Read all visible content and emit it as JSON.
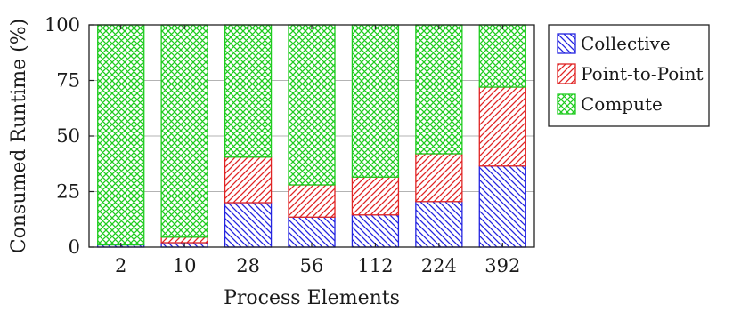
{
  "chart_data": {
    "type": "bar",
    "stacked": true,
    "categories": [
      "2",
      "10",
      "28",
      "56",
      "112",
      "224",
      "392"
    ],
    "series": [
      {
        "name": "Collective",
        "color": "#2424e0",
        "pattern": "north-west-lines",
        "values": [
          1,
          2,
          20,
          13.5,
          14.5,
          20.5,
          36.5
        ]
      },
      {
        "name": "Point-to-Point",
        "color": "#e02424",
        "pattern": "north-east-lines",
        "values": [
          0,
          2.5,
          20.5,
          14.5,
          17,
          21.5,
          35.5
        ]
      },
      {
        "name": "Compute",
        "color": "#1fcc1f",
        "pattern": "crosshatch",
        "values": [
          99,
          95.5,
          59.5,
          72,
          68.5,
          58,
          28
        ]
      }
    ],
    "title": "",
    "xlabel": "Process Elements",
    "ylabel": "Consumed Runtime (%)",
    "ylim": [
      0,
      100
    ],
    "yticks": [
      0,
      25,
      50,
      75,
      100
    ],
    "grid": "horizontal",
    "legend": "right"
  }
}
